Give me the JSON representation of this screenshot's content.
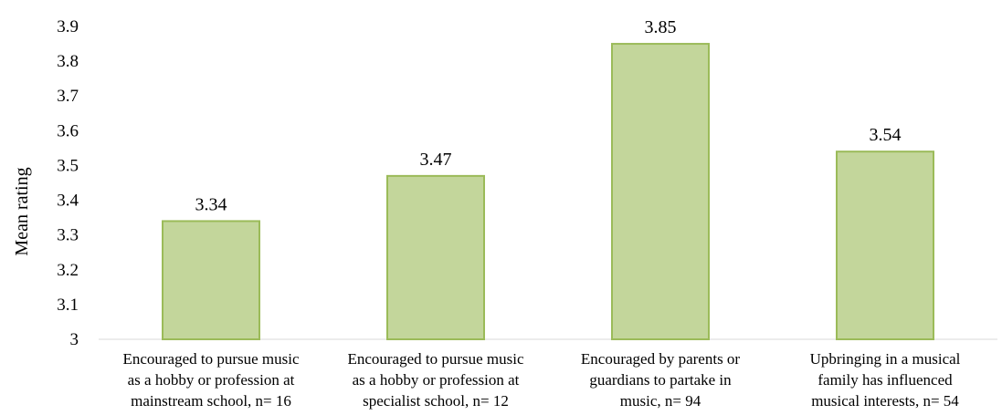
{
  "chart_data": {
    "type": "bar",
    "ylabel": "Mean rating",
    "ylim": [
      3,
      3.9
    ],
    "yticks": [
      3,
      3.1,
      3.2,
      3.3,
      3.4,
      3.5,
      3.6,
      3.7,
      3.8,
      3.9
    ],
    "ytick_labels": [
      "3",
      "3.1",
      "3.2",
      "3.3",
      "3.4",
      "3.5",
      "3.6",
      "3.7",
      "3.8",
      "3.9"
    ],
    "grid": false,
    "categories": [
      [
        "Encouraged to pursue music",
        "as a hobby or profession at",
        "mainstream school, n= 16"
      ],
      [
        "Encouraged to pursue music",
        "as a hobby or profession at",
        "specialist school, n= 12"
      ],
      [
        "Encouraged by parents or",
        "guardians to partake in",
        "music, n= 94"
      ],
      [
        "Upbringing in a musical",
        "family has influenced",
        "musical interests, n= 54"
      ]
    ],
    "values": [
      3.34,
      3.47,
      3.85,
      3.54
    ],
    "data_labels": [
      "3.34",
      "3.47",
      "3.85",
      "3.54"
    ],
    "bar_fill": "#c3d69b",
    "bar_stroke": "#9bbb59"
  }
}
